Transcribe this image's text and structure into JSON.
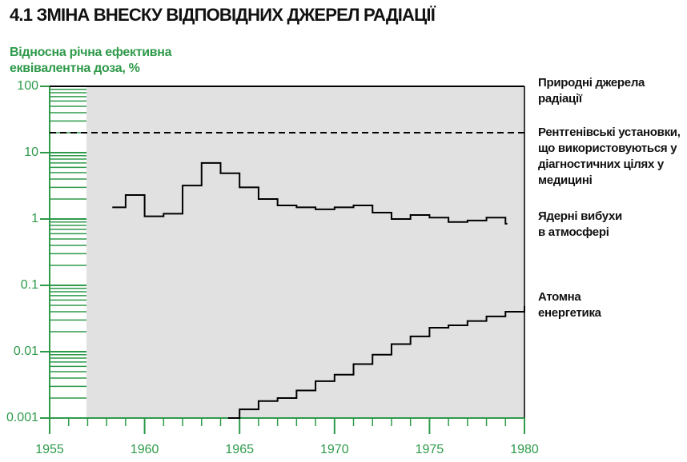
{
  "chart_data": {
    "type": "step",
    "title": "4.1 ЗМІНА ВНЕСКУ ВІДПОВІДНИХ ДЖЕРЕЛ РАДІАЦІЇ",
    "y_label": "Відносна річна ефективна еквівалентна доза, %",
    "log_y": true,
    "xlim": [
      1955,
      1980
    ],
    "xticks": [
      1955,
      1960,
      1965,
      1970,
      1975,
      1980
    ],
    "xminorticks": [
      1956,
      1957,
      1958,
      1959,
      1961,
      1962,
      1963,
      1964,
      1966,
      1967,
      1968,
      1969,
      1971,
      1972,
      1973,
      1974,
      1976,
      1977,
      1978,
      1979
    ],
    "ylim": [
      0.001,
      100
    ],
    "yticks": [
      100,
      10,
      1,
      0.1,
      0.01,
      0.001
    ],
    "yminorticks": [
      0.002,
      0.003,
      0.004,
      0.005,
      0.006,
      0.007,
      0.008,
      0.009,
      0.02,
      0.03,
      0.04,
      0.05,
      0.06,
      0.07,
      0.08,
      0.09,
      0.2,
      0.3,
      0.4,
      0.5,
      0.6,
      0.7,
      0.8,
      0.9,
      2,
      3,
      4,
      5,
      6,
      7,
      8,
      9,
      20,
      30,
      40,
      50,
      60,
      70,
      80,
      90
    ],
    "axis_color": "#2e9a4a",
    "series": [
      {
        "name": "Природні джерела радіації",
        "color": "#000000",
        "linestyle": "solid",
        "x": [
          1955,
          1980
        ],
        "values": [
          100,
          100
        ]
      },
      {
        "name": "Рентгенівські установки, що використовуються у діагностичних цілях у медицині",
        "color": "#000000",
        "linestyle": "dashed",
        "x": [
          1955,
          1980
        ],
        "values": [
          20,
          20
        ]
      },
      {
        "name": "Ядерні вибухи в атмосфері",
        "color": "#000000",
        "linestyle": "solid",
        "x": [
          1958.3,
          1959,
          1960,
          1961,
          1962,
          1963,
          1964,
          1965,
          1966,
          1967,
          1968,
          1969,
          1970,
          1971,
          1972,
          1973,
          1974,
          1975,
          1976,
          1977,
          1978,
          1979,
          1979.1
        ],
        "values": [
          1.5,
          2.3,
          1.1,
          1.2,
          3.2,
          7,
          4.9,
          3.0,
          2.0,
          1.6,
          1.5,
          1.4,
          1.5,
          1.6,
          1.25,
          1.0,
          1.15,
          1.05,
          0.9,
          0.95,
          1.05,
          0.85,
          0.85
        ]
      },
      {
        "name": "Атомна енергетика",
        "color": "#000000",
        "linestyle": "solid",
        "x": [
          1964.4,
          1965,
          1966,
          1967,
          1968,
          1969,
          1970,
          1971,
          1972,
          1973,
          1974,
          1975,
          1976,
          1977,
          1978,
          1979,
          1980
        ],
        "values": [
          0.001,
          0.00135,
          0.0018,
          0.002,
          0.0026,
          0.0036,
          0.0045,
          0.0065,
          0.009,
          0.013,
          0.017,
          0.023,
          0.025,
          0.029,
          0.034,
          0.04,
          0.049
        ]
      }
    ]
  }
}
